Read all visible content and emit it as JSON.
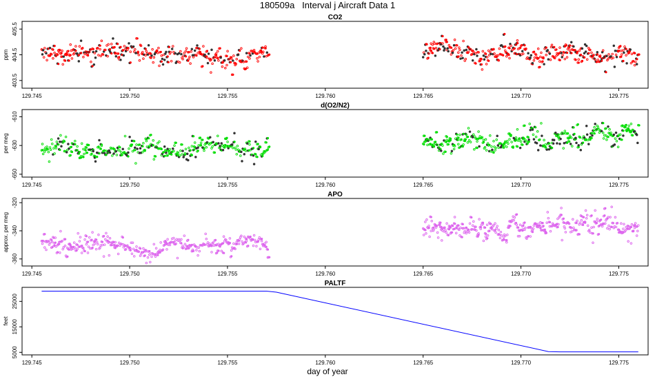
{
  "title": "180509a   Interval j Aircraft Data 1",
  "xlabel": "day of year",
  "colors": {
    "co2": "#ff0000",
    "o2n2": "#00dd00",
    "apo": "#dd66ee",
    "paltf": "#0000ff",
    "dark": "#333333"
  },
  "chart_data": [
    {
      "type": "scatter",
      "title": "CO2",
      "ylabel": "ppm",
      "xlim": [
        129.7445,
        129.7765
      ],
      "ylim": [
        403.2,
        405.8
      ],
      "xticks": [
        "129.745",
        "129.750",
        "129.755",
        "129.760",
        "129.765",
        "129.770",
        "129.775"
      ],
      "yticks": [
        "403.5",
        "404.5",
        "405.5"
      ],
      "segments": [
        {
          "x_start": 129.7455,
          "x_end": 129.7571,
          "base": 404.45,
          "trend": -0.25,
          "noise": 0.22,
          "outlier": 0.5
        },
        {
          "x_start": 129.765,
          "x_end": 129.776,
          "base": 404.55,
          "trend": -0.15,
          "noise": 0.22,
          "outlier": 0.5
        }
      ]
    },
    {
      "type": "scatter",
      "title": "d(O2/N2)",
      "ylabel": "per meg",
      "xlim": [
        129.7445,
        129.7765
      ],
      "ylim": [
        -652,
        -605
      ],
      "xticks": [
        "129.745",
        "129.750",
        "129.755",
        "129.760",
        "129.765",
        "129.770",
        "129.775"
      ],
      "yticks": [
        "-610",
        "-630",
        "-650"
      ],
      "segments": [
        {
          "x_start": 129.7455,
          "x_end": 129.7571,
          "base": -632,
          "trend": 0,
          "noise": 3.5,
          "outlier": 9
        },
        {
          "x_start": 129.765,
          "x_end": 129.776,
          "base": -626,
          "trend": 4,
          "noise": 4,
          "outlier": 10
        }
      ]
    },
    {
      "type": "scatter",
      "title": "APO",
      "ylabel": "approx. per meg",
      "xlim": [
        129.7445,
        129.7765
      ],
      "ylim": [
        -365,
        -317
      ],
      "xticks": [
        "129.745",
        "129.750",
        "129.755",
        "129.760",
        "129.765",
        "129.770",
        "129.775"
      ],
      "yticks": [
        "-320",
        "-340",
        "-360"
      ],
      "segments": [
        {
          "x_start": 129.7455,
          "x_end": 129.7571,
          "base": -351,
          "trend": -2,
          "noise": 3.5,
          "outlier": 10
        },
        {
          "x_start": 129.765,
          "x_end": 129.776,
          "base": -338,
          "trend": 3,
          "noise": 4,
          "outlier": 10
        }
      ]
    },
    {
      "type": "line",
      "title": "PALTF",
      "ylabel": "feet",
      "xlim": [
        129.7445,
        129.7765
      ],
      "ylim": [
        4000,
        30500
      ],
      "xticks": [
        "129.745",
        "129.750",
        "129.755",
        "129.760",
        "129.765",
        "129.770",
        "129.775"
      ],
      "yticks": [
        "5000",
        "15000",
        "25000"
      ],
      "x": [
        129.7455,
        129.757,
        129.7575,
        129.7714,
        129.772,
        129.776
      ],
      "y": [
        29000,
        29000,
        28600,
        5300,
        5200,
        5200
      ]
    }
  ]
}
